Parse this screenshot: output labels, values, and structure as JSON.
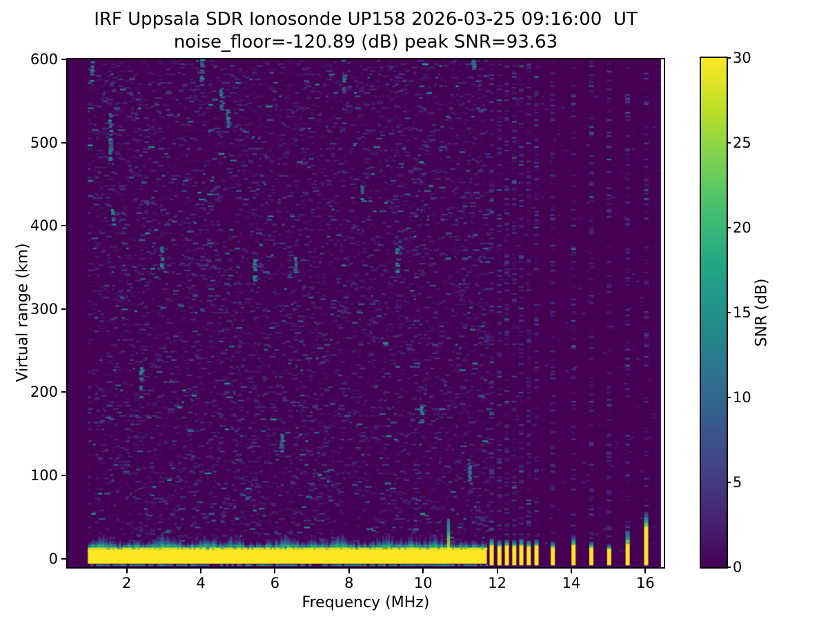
{
  "figure": {
    "title_line1": "IRF Uppsala SDR Ionosonde UP158 2026-03-25 09:16:00  UT",
    "title_line2": "noise_floor=-120.89 (dB) peak SNR=93.63",
    "background_color": "#ffffff"
  },
  "axes": {
    "xlabel": "Frequency (MHz)",
    "ylabel": "Virtual range (km)",
    "x_ticks": [
      2,
      4,
      6,
      8,
      10,
      12,
      14,
      16
    ],
    "y_ticks": [
      600,
      500,
      400,
      300,
      200,
      100,
      0
    ],
    "x_range_mhz": [
      0.405,
      16.495
    ],
    "y_range_km": [
      -10.2,
      600
    ]
  },
  "colorbar": {
    "label": "SNR (dB)",
    "ticks": [
      30,
      25,
      20,
      15,
      10,
      5,
      0
    ],
    "range_db": [
      0,
      30
    ],
    "colormap": "viridis",
    "stops": [
      "#440154",
      "#482475",
      "#414487",
      "#355f8d",
      "#2a788e",
      "#21918c",
      "#22a884",
      "#44bf70",
      "#7ad151",
      "#bddf26",
      "#fde725"
    ]
  },
  "chart_data": {
    "type": "heatmap",
    "title": "IRF Uppsala SDR Ionosonde UP158 2026-03-25 09:16:00  UT",
    "subtitle": "noise_floor=-120.89 (dB) peak SNR=93.63",
    "xlabel": "Frequency (MHz)",
    "ylabel": "Virtual range (km)",
    "zlabel": "SNR (dB)",
    "x_range_mhz": [
      0.405,
      16.495
    ],
    "y_range_km": [
      -10.2,
      600
    ],
    "z_range_db": [
      0,
      30
    ],
    "colormap": "viridis",
    "noise_floor_db": -120.89,
    "peak_snr_db": 93.63,
    "sweep_start_mhz": 0.95,
    "sweep_continuous_end_mhz": 11.72,
    "data_right_edge_mhz": 16.42,
    "ground_band": {
      "f_start_mhz": 0.95,
      "f_end_mhz": 11.72,
      "top_km": 11,
      "bottom_km": -6,
      "snr_db": 30,
      "underline_km": -7.5
    },
    "band_bumps": [
      {
        "f_mhz": 1.35,
        "extra_km": 6
      },
      {
        "f_mhz": 2.9,
        "extra_km": 9
      },
      {
        "f_mhz": 3.25,
        "extra_km": 6
      },
      {
        "f_mhz": 4.2,
        "extra_km": 7
      },
      {
        "f_mhz": 4.8,
        "extra_km": 6
      },
      {
        "f_mhz": 6.3,
        "extra_km": 9
      },
      {
        "f_mhz": 7.05,
        "extra_km": 5
      },
      {
        "f_mhz": 7.7,
        "extra_km": 7
      },
      {
        "f_mhz": 9.0,
        "extra_km": 8
      },
      {
        "f_mhz": 9.6,
        "extra_km": 5
      },
      {
        "f_mhz": 10.3,
        "extra_km": 6
      }
    ],
    "echo_spikes": [
      {
        "f_mhz": 2.88,
        "top_km": 17
      },
      {
        "f_mhz": 4.18,
        "top_km": 14
      },
      {
        "f_mhz": 6.28,
        "top_km": 15
      },
      {
        "f_mhz": 10.68,
        "top_km": 48
      }
    ],
    "discrete_stripes": [
      {
        "f_mhz": 11.85,
        "yellow_top_km": 16,
        "cap_km": 24
      },
      {
        "f_mhz": 12.06,
        "yellow_top_km": 15,
        "cap_km": 22
      },
      {
        "f_mhz": 12.26,
        "yellow_top_km": 16,
        "cap_km": 23
      },
      {
        "f_mhz": 12.46,
        "yellow_top_km": 15,
        "cap_km": 22
      },
      {
        "f_mhz": 12.65,
        "yellow_top_km": 16,
        "cap_km": 24
      },
      {
        "f_mhz": 12.85,
        "yellow_top_km": 15,
        "cap_km": 22
      },
      {
        "f_mhz": 13.06,
        "yellow_top_km": 16,
        "cap_km": 23
      },
      {
        "f_mhz": 13.5,
        "yellow_top_km": 14,
        "cap_km": 20
      },
      {
        "f_mhz": 14.06,
        "yellow_top_km": 17,
        "cap_km": 26
      },
      {
        "f_mhz": 14.54,
        "yellow_top_km": 14,
        "cap_km": 20
      },
      {
        "f_mhz": 15.02,
        "yellow_top_km": 12,
        "cap_km": 17
      },
      {
        "f_mhz": 15.52,
        "yellow_top_km": 18,
        "cap_km": 34
      },
      {
        "f_mhz": 16.02,
        "yellow_top_km": 38,
        "cap_km": 56
      }
    ],
    "echo_streaks": [
      {
        "f_mhz": 1.05,
        "range_km": 575,
        "length_km": 35
      },
      {
        "f_mhz": 1.55,
        "range_km": 480,
        "length_km": 55
      },
      {
        "f_mhz": 1.62,
        "range_km": 400,
        "length_km": 25
      },
      {
        "f_mhz": 2.38,
        "range_km": 195,
        "length_km": 40
      },
      {
        "f_mhz": 2.95,
        "range_km": 350,
        "length_km": 25
      },
      {
        "f_mhz": 4.02,
        "range_km": 570,
        "length_km": 30
      },
      {
        "f_mhz": 4.55,
        "range_km": 540,
        "length_km": 28
      },
      {
        "f_mhz": 4.72,
        "range_km": 520,
        "length_km": 20
      },
      {
        "f_mhz": 5.45,
        "range_km": 335,
        "length_km": 25
      },
      {
        "f_mhz": 6.18,
        "range_km": 120,
        "length_km": 30
      },
      {
        "f_mhz": 6.55,
        "range_km": 345,
        "length_km": 20
      },
      {
        "f_mhz": 7.85,
        "range_km": 560,
        "length_km": 22
      },
      {
        "f_mhz": 8.35,
        "range_km": 430,
        "length_km": 18
      },
      {
        "f_mhz": 9.3,
        "range_km": 345,
        "length_km": 28
      },
      {
        "f_mhz": 9.95,
        "range_km": 165,
        "length_km": 20
      },
      {
        "f_mhz": 11.25,
        "range_km": 95,
        "length_km": 25
      },
      {
        "f_mhz": 11.35,
        "range_km": 585,
        "length_km": 22
      }
    ]
  }
}
